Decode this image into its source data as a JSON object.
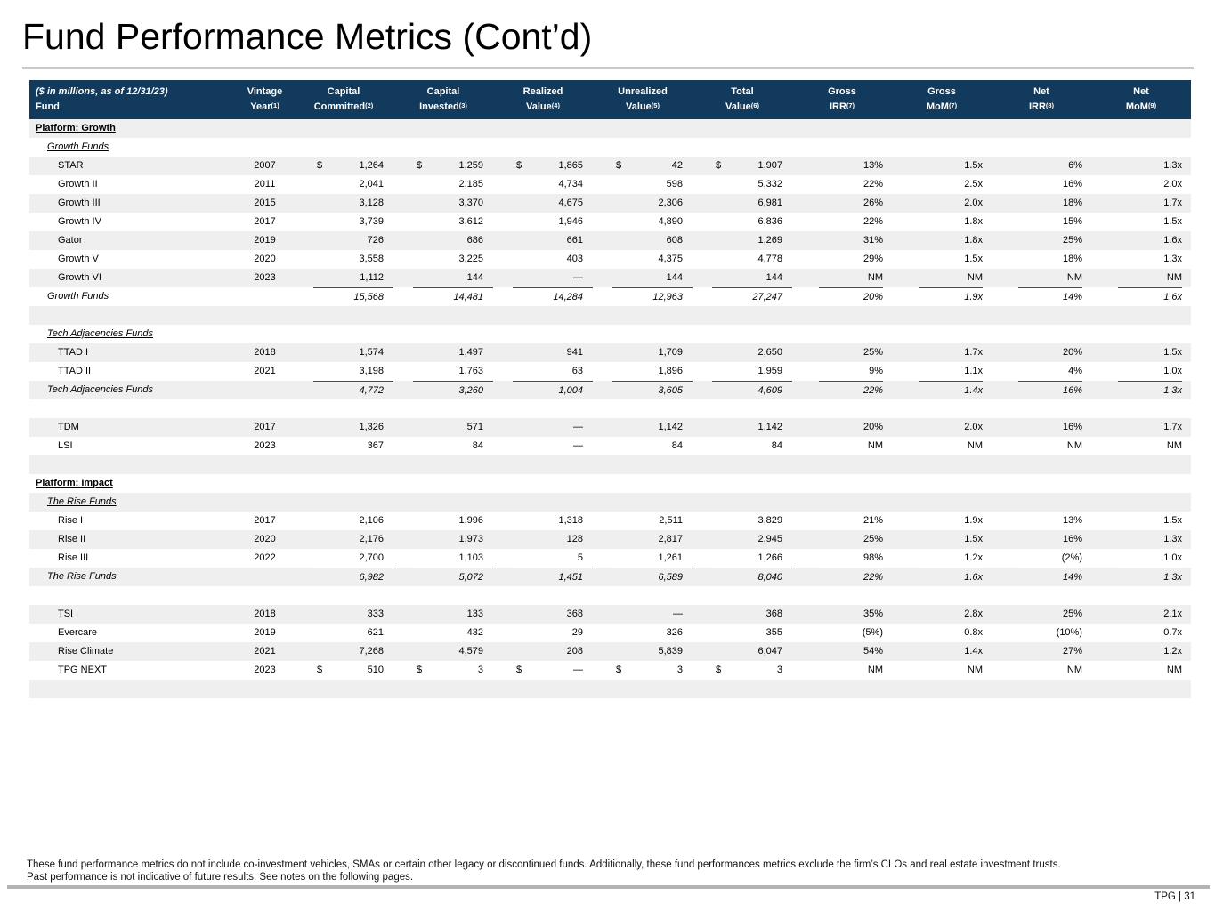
{
  "title": "Fund Performance Metrics (Cont’d)",
  "table": {
    "header_note_line1": "($ in millions, as of 12/31/23)",
    "header_note_line2": "Fund",
    "columns": [
      {
        "line1": "Vintage",
        "line2": "Year",
        "sup": "(1)"
      },
      {
        "line1": "Capital",
        "line2": "Committed",
        "sup": "(2)"
      },
      {
        "line1": "Capital",
        "line2": "Invested",
        "sup": "(3)"
      },
      {
        "line1": "Realized",
        "line2": "Value",
        "sup": "(4)"
      },
      {
        "line1": "Unrealized",
        "line2": "Value",
        "sup": "(5)"
      },
      {
        "line1": "Total",
        "line2": "Value",
        "sup": "(6)"
      },
      {
        "line1": "Gross",
        "line2": "IRR",
        "sup": "(7)"
      },
      {
        "line1": "Gross",
        "line2": "MoM",
        "sup": "(7)"
      },
      {
        "line1": "Net",
        "line2": "IRR",
        "sup": "(8)"
      },
      {
        "line1": "Net",
        "line2": "MoM",
        "sup": "(9)"
      }
    ],
    "rows": [
      {
        "type": "platform",
        "label": "Platform: Growth",
        "shade": true
      },
      {
        "type": "group",
        "label": "Growth Funds",
        "shade": false
      },
      {
        "type": "fund",
        "label": "STAR",
        "dollar": true,
        "cells": [
          "2007",
          "1,264",
          "1,259",
          "1,865",
          "42",
          "1,907",
          "13%",
          "1.5x",
          "6%",
          "1.3x"
        ],
        "shade": true
      },
      {
        "type": "fund",
        "label": "Growth II",
        "dollar": false,
        "cells": [
          "2011",
          "2,041",
          "2,185",
          "4,734",
          "598",
          "5,332",
          "22%",
          "2.5x",
          "16%",
          "2.0x"
        ],
        "shade": false
      },
      {
        "type": "fund",
        "label": "Growth III",
        "dollar": false,
        "cells": [
          "2015",
          "3,128",
          "3,370",
          "4,675",
          "2,306",
          "6,981",
          "26%",
          "2.0x",
          "18%",
          "1.7x"
        ],
        "shade": true
      },
      {
        "type": "fund",
        "label": "Growth IV",
        "dollar": false,
        "cells": [
          "2017",
          "3,739",
          "3,612",
          "1,946",
          "4,890",
          "6,836",
          "22%",
          "1.8x",
          "15%",
          "1.5x"
        ],
        "shade": false
      },
      {
        "type": "fund",
        "label": "Gator",
        "dollar": false,
        "cells": [
          "2019",
          "726",
          "686",
          "661",
          "608",
          "1,269",
          "31%",
          "1.8x",
          "25%",
          "1.6x"
        ],
        "shade": true
      },
      {
        "type": "fund",
        "label": "Growth V",
        "dollar": false,
        "cells": [
          "2020",
          "3,558",
          "3,225",
          "403",
          "4,375",
          "4,778",
          "29%",
          "1.5x",
          "18%",
          "1.3x"
        ],
        "shade": false
      },
      {
        "type": "fund",
        "label": "Growth VI",
        "dollar": false,
        "cells": [
          "2023",
          "1,112",
          "144",
          "—",
          "144",
          "144",
          "NM",
          "NM",
          "NM",
          "NM"
        ],
        "shade": true
      },
      {
        "type": "total",
        "label": "Growth Funds",
        "cells": [
          "",
          "15,568",
          "14,481",
          "14,284",
          "12,963",
          "27,247",
          "20%",
          "1.9x",
          "14%",
          "1.6x"
        ],
        "shade": false
      },
      {
        "type": "spacer",
        "shade": true
      },
      {
        "type": "group",
        "label": "Tech Adjacencies Funds",
        "shade": false
      },
      {
        "type": "fund",
        "label": "TTAD I",
        "dollar": false,
        "cells": [
          "2018",
          "1,574",
          "1,497",
          "941",
          "1,709",
          "2,650",
          "25%",
          "1.7x",
          "20%",
          "1.5x"
        ],
        "shade": true
      },
      {
        "type": "fund",
        "label": "TTAD II",
        "dollar": false,
        "cells": [
          "2021",
          "3,198",
          "1,763",
          "63",
          "1,896",
          "1,959",
          "9%",
          "1.1x",
          "4%",
          "1.0x"
        ],
        "shade": false
      },
      {
        "type": "total",
        "label": "Tech Adjacencies Funds",
        "cells": [
          "",
          "4,772",
          "3,260",
          "1,004",
          "3,605",
          "4,609",
          "22%",
          "1.4x",
          "16%",
          "1.3x"
        ],
        "shade": true
      },
      {
        "type": "spacer",
        "shade": false
      },
      {
        "type": "fund",
        "label": "TDM",
        "dollar": false,
        "cells": [
          "2017",
          "1,326",
          "571",
          "—",
          "1,142",
          "1,142",
          "20%",
          "2.0x",
          "16%",
          "1.7x"
        ],
        "shade": true
      },
      {
        "type": "fund",
        "label": "LSI",
        "dollar": false,
        "cells": [
          "2023",
          "367",
          "84",
          "—",
          "84",
          "84",
          "NM",
          "NM",
          "NM",
          "NM"
        ],
        "shade": false
      },
      {
        "type": "spacer",
        "shade": true
      },
      {
        "type": "platform",
        "label": "Platform: Impact",
        "shade": false
      },
      {
        "type": "group",
        "label": "The Rise Funds",
        "shade": true
      },
      {
        "type": "fund",
        "label": "Rise I",
        "dollar": false,
        "cells": [
          "2017",
          "2,106",
          "1,996",
          "1,318",
          "2,511",
          "3,829",
          "21%",
          "1.9x",
          "13%",
          "1.5x"
        ],
        "shade": false
      },
      {
        "type": "fund",
        "label": "Rise II",
        "dollar": false,
        "cells": [
          "2020",
          "2,176",
          "1,973",
          "128",
          "2,817",
          "2,945",
          "25%",
          "1.5x",
          "16%",
          "1.3x"
        ],
        "shade": true
      },
      {
        "type": "fund",
        "label": "Rise III",
        "dollar": false,
        "cells": [
          "2022",
          "2,700",
          "1,103",
          "5",
          "1,261",
          "1,266",
          "98%",
          "1.2x",
          "(2%)",
          "1.0x"
        ],
        "shade": false
      },
      {
        "type": "total",
        "label": "The Rise Funds",
        "cells": [
          "",
          "6,982",
          "5,072",
          "1,451",
          "6,589",
          "8,040",
          "22%",
          "1.6x",
          "14%",
          "1.3x"
        ],
        "shade": true
      },
      {
        "type": "spacer",
        "shade": false
      },
      {
        "type": "fund",
        "label": "TSI",
        "dollar": false,
        "cells": [
          "2018",
          "333",
          "133",
          "368",
          "—",
          "368",
          "35%",
          "2.8x",
          "25%",
          "2.1x"
        ],
        "shade": true
      },
      {
        "type": "fund",
        "label": "Evercare",
        "dollar": false,
        "cells": [
          "2019",
          "621",
          "432",
          "29",
          "326",
          "355",
          "(5%)",
          "0.8x",
          "(10%)",
          "0.7x"
        ],
        "shade": false
      },
      {
        "type": "fund",
        "label": "Rise Climate",
        "dollar": false,
        "cells": [
          "2021",
          "7,268",
          "4,579",
          "208",
          "5,839",
          "6,047",
          "54%",
          "1.4x",
          "27%",
          "1.2x"
        ],
        "shade": true
      },
      {
        "type": "fund",
        "label": "TPG NEXT",
        "dollar": true,
        "cells": [
          "2023",
          "510",
          "3",
          "—",
          "3",
          "3",
          "NM",
          "NM",
          "NM",
          "NM"
        ],
        "shade": false
      },
      {
        "type": "spacer",
        "shade": true
      }
    ]
  },
  "footnotes": [
    "These fund performance metrics do not include co-investment vehicles, SMAs or certain other legacy or discontinued funds. Additionally, these fund performances metrics exclude the firm’s CLOs and real estate investment trusts.",
    "Past performance is not indicative of future results. See notes on the following pages."
  ],
  "page_label": "TPG | 31",
  "colors": {
    "header_bg": "#113A5C",
    "header_text": "#FFFFFF",
    "row_stripe": "#EFEFEF",
    "title_rule": "#C9C9C9",
    "footer_rule": "#B3B3B3",
    "total_rule": "#4D4D4D"
  }
}
